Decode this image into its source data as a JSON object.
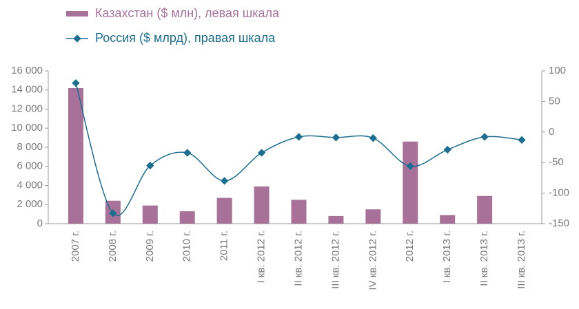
{
  "chart_data": {
    "type": "bar_line",
    "categories": [
      "2007 г.",
      "2008 г.",
      "2009 г.",
      "2010 г.",
      "2011 г.",
      "I кв. 2012 г.",
      "II кв. 2012 г.",
      "III кв. 2012 г.",
      "IV кв. 2012 г.",
      "2012 г.",
      "I кв. 2013 г.",
      "II кв. 2013 г.",
      "III кв. 2013 г."
    ],
    "series": [
      {
        "name": "Казахстан ($ млн), левая шкала",
        "type": "bar",
        "color": "#a8719a",
        "values": [
          14200,
          2400,
          1900,
          1300,
          2700,
          3900,
          2500,
          800,
          1500,
          8600,
          900,
          2900,
          null
        ]
      },
      {
        "name": "Россия ($ млрд), правая шкала",
        "type": "line",
        "axis": "y2",
        "color": "#1b6e90",
        "values": [
          80,
          -133,
          -55,
          -34,
          -80,
          -34,
          -8,
          -9,
          -10,
          -56,
          -29,
          -8,
          -13
        ]
      }
    ],
    "ylim": [
      0,
      16000
    ],
    "yticks": [
      0,
      {
        "value": 2000,
        "label": "2 000"
      },
      {
        "value": 4000,
        "label": "4 000"
      },
      {
        "value": 6000,
        "label": "6 000"
      },
      {
        "value": 8000,
        "label": "8 000"
      },
      {
        "value": 10000,
        "label": "10 000"
      },
      {
        "value": 12000,
        "label": "12 000"
      },
      {
        "value": 14000,
        "label": "14 000"
      },
      {
        "value": 16000,
        "label": "16 000"
      }
    ],
    "y2lim": [
      -150,
      100
    ],
    "y2ticks": [
      -150,
      -100,
      -50,
      0,
      50,
      100
    ]
  }
}
